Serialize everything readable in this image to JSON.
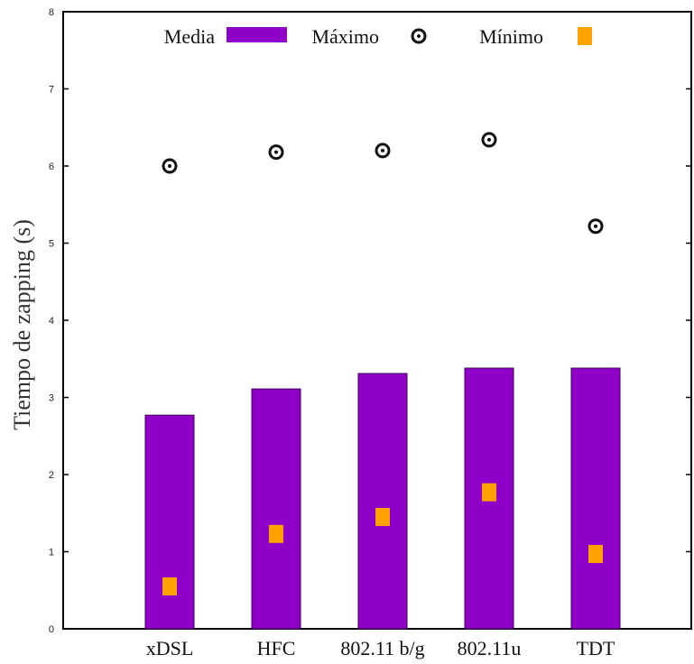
{
  "chart_data": {
    "type": "bar",
    "categories": [
      "xDSL",
      "HFC",
      "802.11 b/g",
      "802.11u",
      "TDT"
    ],
    "series": [
      {
        "name": "Media",
        "kind": "bar",
        "color": "#8e00c8",
        "values": [
          2.77,
          3.11,
          3.31,
          3.38,
          3.38
        ]
      },
      {
        "name": "Máximo",
        "kind": "marker-circle",
        "color": "#111111",
        "values": [
          6.0,
          6.18,
          6.2,
          6.34,
          5.22
        ]
      },
      {
        "name": "Mínimo",
        "kind": "marker-square",
        "color": "#ffa200",
        "values": [
          0.55,
          1.23,
          1.45,
          1.77,
          0.97
        ]
      }
    ],
    "ylabel": "Tiempo de zapping (s)",
    "xlabel": "",
    "ylim": [
      0,
      8
    ],
    "yticks": [
      0,
      1,
      2,
      3,
      4,
      5,
      6,
      7,
      8
    ],
    "grid": false,
    "legend_position": "top"
  }
}
